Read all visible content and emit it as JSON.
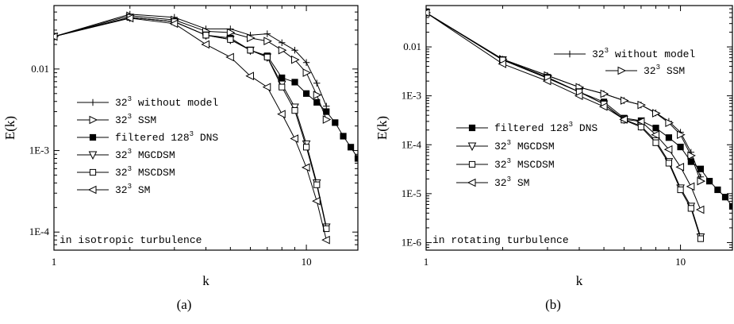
{
  "chart_data": [
    {
      "type": "line",
      "panel": "(a)",
      "xlabel": "k",
      "ylabel": "E(k)",
      "xscale": "log",
      "yscale": "log",
      "xlim": [
        1,
        16
      ],
      "ylim": [
        6e-05,
        0.06
      ],
      "xticks": [
        {
          "value": 1,
          "label": "1"
        },
        {
          "value": 10,
          "label": "10"
        }
      ],
      "yticks": [
        {
          "value": 0.0001,
          "label": "1E-4"
        },
        {
          "value": 0.001,
          "label": "1E-3"
        },
        {
          "value": 0.01,
          "label": "0.01"
        }
      ],
      "annotation": "in isotropic turbulence",
      "legend_position": "center-left",
      "series": [
        {
          "name": "32³ without model",
          "marker": "plus",
          "x": [
            1,
            2,
            3,
            4,
            5,
            6,
            7,
            8,
            9,
            10,
            11,
            12
          ],
          "y": [
            0.025,
            0.047,
            0.043,
            0.031,
            0.031,
            0.026,
            0.027,
            0.021,
            0.017,
            0.012,
            0.0067,
            0.0035
          ]
        },
        {
          "name": "32³ SSM",
          "marker": "triangle-right",
          "x": [
            1,
            2,
            3,
            4,
            5,
            6,
            7,
            8,
            9,
            10,
            11,
            12
          ],
          "y": [
            0.025,
            0.045,
            0.04,
            0.029,
            0.028,
            0.024,
            0.022,
            0.017,
            0.013,
            0.009,
            0.0048,
            0.0024
          ]
        },
        {
          "name": "filtered 128³ DNS",
          "marker": "square-filled",
          "x": [
            1,
            2,
            3,
            4,
            5,
            6,
            7,
            8,
            9,
            10,
            11,
            12,
            13,
            14,
            15,
            16
          ],
          "y": [
            0.025,
            0.043,
            0.038,
            0.026,
            0.024,
            0.017,
            0.0145,
            0.0078,
            0.0069,
            0.005,
            0.0039,
            0.003,
            0.0022,
            0.0015,
            0.0011,
            0.0008
          ]
        },
        {
          "name": "32³ MGCDSM",
          "marker": "triangle-down",
          "x": [
            1,
            2,
            3,
            4,
            5,
            6,
            7,
            8,
            9,
            10,
            11,
            12
          ],
          "y": [
            0.025,
            0.043,
            0.038,
            0.026,
            0.023,
            0.017,
            0.014,
            0.0065,
            0.0034,
            0.0012,
            0.0004,
            0.000115
          ]
        },
        {
          "name": "32³ MSCDSM",
          "marker": "square-open",
          "x": [
            1,
            2,
            3,
            4,
            5,
            6,
            7,
            8,
            9,
            10,
            11,
            12
          ],
          "y": [
            0.025,
            0.043,
            0.038,
            0.026,
            0.023,
            0.017,
            0.014,
            0.006,
            0.0031,
            0.0011,
            0.00038,
            0.00011
          ]
        },
        {
          "name": "32³ SM",
          "marker": "triangle-left",
          "x": [
            1,
            2,
            3,
            4,
            5,
            6,
            7,
            8,
            9,
            10,
            11,
            12
          ],
          "y": [
            0.025,
            0.042,
            0.036,
            0.02,
            0.014,
            0.0082,
            0.006,
            0.0028,
            0.0014,
            0.00062,
            0.00024,
            8e-05
          ]
        }
      ]
    },
    {
      "type": "line",
      "panel": "(b)",
      "xlabel": "k",
      "ylabel": "E(k)",
      "xscale": "log",
      "yscale": "log",
      "xlim": [
        1,
        16
      ],
      "ylim": [
        7e-07,
        0.07
      ],
      "xticks": [
        {
          "value": 1,
          "label": "1"
        },
        {
          "value": 10,
          "label": "10"
        }
      ],
      "yticks": [
        {
          "value": 1e-06,
          "label": "1E-6"
        },
        {
          "value": 1e-05,
          "label": "1E-5"
        },
        {
          "value": 0.0001,
          "label": "1E-4"
        },
        {
          "value": 0.001,
          "label": "1E-3"
        },
        {
          "value": 0.01,
          "label": "0.01"
        }
      ],
      "annotation": "in rotating turbulence",
      "legend_position": "mixed",
      "series": [
        {
          "name": "32³ without model",
          "marker": "plus",
          "x": [
            1,
            2,
            3,
            4,
            5,
            6,
            7,
            8,
            9,
            10,
            11,
            12
          ],
          "y": [
            0.05,
            0.0056,
            0.0026,
            0.0015,
            0.0011,
            0.0008,
            0.00065,
            0.00045,
            0.0003,
            0.00018,
            7e-05,
            2.2e-05
          ]
        },
        {
          "name": "32³ SSM",
          "marker": "triangle-right",
          "x": [
            1,
            2,
            3,
            4,
            5,
            6,
            7,
            8,
            9,
            10,
            11,
            12
          ],
          "y": [
            0.05,
            0.0056,
            0.0026,
            0.0015,
            0.0011,
            0.0008,
            0.00065,
            0.00044,
            0.00028,
            0.00016,
            6e-05,
            1.8e-05
          ]
        },
        {
          "name": "filtered 128³ DNS",
          "marker": "square-filled",
          "x": [
            1,
            2,
            3,
            4,
            5,
            6,
            7,
            8,
            9,
            10,
            11,
            12,
            13,
            14,
            15,
            16
          ],
          "y": [
            0.05,
            0.0055,
            0.0024,
            0.0012,
            0.00075,
            0.00035,
            0.00031,
            0.00022,
            0.00014,
            9e-05,
            4.5e-05,
            3.2e-05,
            1.8e-05,
            1.2e-05,
            8.5e-06,
            5.5e-06
          ]
        },
        {
          "name": "32³ MGCDSM",
          "marker": "triangle-down",
          "x": [
            1,
            2,
            3,
            4,
            5,
            6,
            7,
            8,
            9,
            10,
            11,
            12
          ],
          "y": [
            0.05,
            0.0054,
            0.0023,
            0.0012,
            0.00068,
            0.00033,
            0.00024,
            0.00012,
            4.5e-05,
            1.3e-05,
            5.5e-06,
            1.3e-06
          ]
        },
        {
          "name": "32³ MSCDSM",
          "marker": "square-open",
          "x": [
            1,
            2,
            3,
            4,
            5,
            6,
            7,
            8,
            9,
            10,
            11,
            12
          ],
          "y": [
            0.05,
            0.0054,
            0.0023,
            0.0012,
            0.00068,
            0.00032,
            0.00023,
            0.00011,
            4.2e-05,
            1.2e-05,
            5e-06,
            1.2e-06
          ]
        },
        {
          "name": "32³ SM",
          "marker": "triangle-left",
          "x": [
            1,
            2,
            3,
            4,
            5,
            6,
            7,
            8,
            9,
            10,
            11,
            12
          ],
          "y": [
            0.05,
            0.0045,
            0.002,
            0.001,
            0.0006,
            0.00033,
            0.0003,
            0.00016,
            8e-05,
            3.5e-05,
            1.4e-05,
            4.7e-06
          ]
        }
      ]
    }
  ],
  "captions": [
    "(a)",
    "(b)"
  ]
}
